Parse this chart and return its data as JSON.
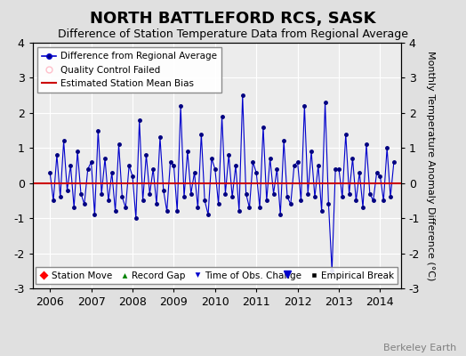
{
  "title": "NORTH BATTLEFORD RCS, SASK",
  "subtitle": "Difference of Station Temperature Data from Regional Average",
  "ylabel": "Monthly Temperature Anomaly Difference (°C)",
  "ylim": [
    -3,
    4
  ],
  "yticks": [
    -3,
    -2,
    -1,
    0,
    1,
    2,
    3,
    4
  ],
  "xlim": [
    2005.58,
    2014.5
  ],
  "xticks": [
    2006,
    2007,
    2008,
    2009,
    2010,
    2011,
    2012,
    2013,
    2014
  ],
  "background_color": "#e0e0e0",
  "plot_bg_color": "#ececec",
  "line_color": "#0000cc",
  "marker_color": "#000080",
  "bias_color": "#cc0000",
  "bias_value": 0.0,
  "title_fontsize": 13,
  "subtitle_fontsize": 9,
  "watermark": "Berkeley Earth",
  "time_of_obs_change": [
    2011.75
  ],
  "data_x": [
    2006.0,
    2006.083,
    2006.167,
    2006.25,
    2006.333,
    2006.417,
    2006.5,
    2006.583,
    2006.667,
    2006.75,
    2006.833,
    2006.917,
    2007.0,
    2007.083,
    2007.167,
    2007.25,
    2007.333,
    2007.417,
    2007.5,
    2007.583,
    2007.667,
    2007.75,
    2007.833,
    2007.917,
    2008.0,
    2008.083,
    2008.167,
    2008.25,
    2008.333,
    2008.417,
    2008.5,
    2008.583,
    2008.667,
    2008.75,
    2008.833,
    2008.917,
    2009.0,
    2009.083,
    2009.167,
    2009.25,
    2009.333,
    2009.417,
    2009.5,
    2009.583,
    2009.667,
    2009.75,
    2009.833,
    2009.917,
    2010.0,
    2010.083,
    2010.167,
    2010.25,
    2010.333,
    2010.417,
    2010.5,
    2010.583,
    2010.667,
    2010.75,
    2010.833,
    2010.917,
    2011.0,
    2011.083,
    2011.167,
    2011.25,
    2011.333,
    2011.417,
    2011.5,
    2011.583,
    2011.667,
    2011.75,
    2011.833,
    2011.917,
    2012.0,
    2012.083,
    2012.167,
    2012.25,
    2012.333,
    2012.417,
    2012.5,
    2012.583,
    2012.667,
    2012.75,
    2012.833,
    2012.917,
    2013.0,
    2013.083,
    2013.167,
    2013.25,
    2013.333,
    2013.417,
    2013.5,
    2013.583,
    2013.667,
    2013.75,
    2013.833,
    2013.917,
    2014.0,
    2014.083,
    2014.167,
    2014.25,
    2014.333
  ],
  "data_y": [
    0.3,
    -0.5,
    0.8,
    -0.4,
    1.2,
    -0.2,
    0.5,
    -0.7,
    0.9,
    -0.3,
    -0.6,
    0.4,
    0.6,
    -0.9,
    1.5,
    -0.3,
    0.7,
    -0.5,
    0.3,
    -0.8,
    1.1,
    -0.4,
    -0.7,
    0.5,
    0.2,
    -1.0,
    1.8,
    -0.5,
    0.8,
    -0.3,
    0.4,
    -0.6,
    1.3,
    -0.2,
    -0.8,
    0.6,
    0.5,
    -0.8,
    2.2,
    -0.4,
    0.9,
    -0.3,
    0.3,
    -0.7,
    1.4,
    -0.5,
    -0.9,
    0.7,
    0.4,
    -0.6,
    1.9,
    -0.3,
    0.8,
    -0.4,
    0.5,
    -0.8,
    2.5,
    -0.3,
    -0.7,
    0.6,
    0.3,
    -0.7,
    1.6,
    -0.5,
    0.7,
    -0.3,
    0.4,
    -0.9,
    1.2,
    -0.4,
    -0.6,
    0.5,
    0.6,
    -0.5,
    2.2,
    -0.3,
    0.9,
    -0.4,
    0.5,
    -0.8,
    2.3,
    -0.6,
    -2.5,
    0.4,
    0.4,
    -0.4,
    1.4,
    -0.3,
    0.7,
    -0.5,
    0.3,
    -0.7,
    1.1,
    -0.3,
    -0.5,
    0.3,
    0.2,
    -0.5,
    1.0,
    -0.4,
    0.6
  ]
}
